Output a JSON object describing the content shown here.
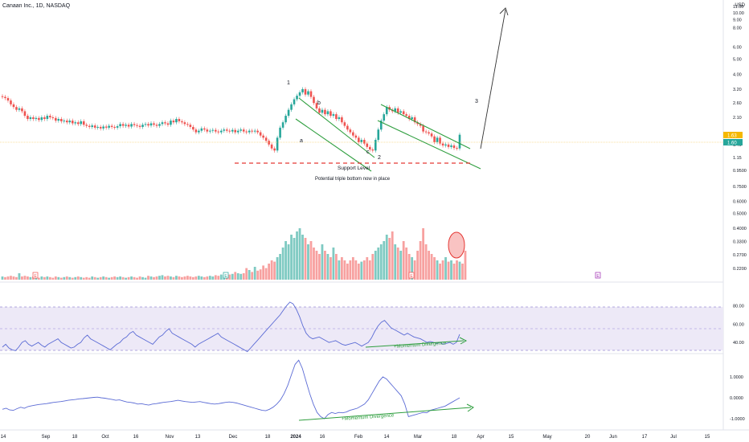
{
  "header": {
    "symbol_line": "Canaan Inc., 1D, NASDAQ",
    "currency": "USD"
  },
  "colors": {
    "up": "#26a69a",
    "down": "#ef5350",
    "vol_up": "#7fcac2",
    "vol_down": "#f7a1a0",
    "channel": "#2e9e3e",
    "support": "#e53935",
    "indicator_line": "#5b6bd5",
    "rsi_band": "#ede9f7",
    "price_badge_up": "#26a69a",
    "price_badge_alt": "#f5b800"
  },
  "chart_data": {
    "type": "candlestick",
    "symbol": "Canaan Inc.",
    "interval": "1D",
    "exchange": "NASDAQ",
    "price_scale": "log",
    "price_axis_ticks": [
      "11.00",
      "10.00",
      "9.00",
      "8.00",
      "6.00",
      "5.00",
      "4.00",
      "3.20",
      "2.60",
      "2.10",
      "1.40",
      "1.15",
      "0.9500",
      "0.7500",
      "0.6000",
      "0.5000",
      "0.4000",
      "0.3300",
      "0.2700",
      "0.2200"
    ],
    "current_price_labels": [
      "1.63",
      "1.60"
    ],
    "x_axis_ticks": [
      "14",
      "Sep",
      "18",
      "Oct",
      "16",
      "Nov",
      "13",
      "Dec",
      "18",
      "2024",
      "16",
      "Feb",
      "14",
      "Mar",
      "18",
      "Apr",
      "15",
      "May",
      "20",
      "Jun",
      "17",
      "Jul",
      "15"
    ],
    "candles_close": [
      2.85,
      2.8,
      2.7,
      2.55,
      2.45,
      2.35,
      2.4,
      2.3,
      2.15,
      2.05,
      2.1,
      2.05,
      2.08,
      2.02,
      2.1,
      2.05,
      2.15,
      2.1,
      2.08,
      2.0,
      2.05,
      1.98,
      2.0,
      1.95,
      2.0,
      1.92,
      1.95,
      1.9,
      1.98,
      1.88,
      1.85,
      1.82,
      1.86,
      1.8,
      1.82,
      1.78,
      1.83,
      1.8,
      1.85,
      1.82,
      1.8,
      1.84,
      1.9,
      1.85,
      1.88,
      1.83,
      1.9,
      1.87,
      1.85,
      1.82,
      1.88,
      1.9,
      1.86,
      1.92,
      1.88,
      1.85,
      1.9,
      1.95,
      1.92,
      1.88,
      2.0,
      1.95,
      2.05,
      1.98,
      1.95,
      1.9,
      1.88,
      1.82,
      1.75,
      1.68,
      1.72,
      1.78,
      1.75,
      1.7,
      1.72,
      1.74,
      1.7,
      1.68,
      1.72,
      1.75,
      1.72,
      1.7,
      1.74,
      1.68,
      1.72,
      1.75,
      1.7,
      1.68,
      1.72,
      1.7,
      1.72,
      1.68,
      1.6,
      1.55,
      1.48,
      1.4,
      1.32,
      1.28,
      1.55,
      1.8,
      1.95,
      2.15,
      2.35,
      2.55,
      2.75,
      2.9,
      3.05,
      3.2,
      2.95,
      3.1,
      2.85,
      2.6,
      2.4,
      2.25,
      2.35,
      2.2,
      2.3,
      2.15,
      2.2,
      2.05,
      2.1,
      1.95,
      1.85,
      1.75,
      1.68,
      1.6,
      1.55,
      1.45,
      1.5,
      1.42,
      1.35,
      1.3,
      1.28,
      1.5,
      1.75,
      2.0,
      2.2,
      2.45,
      2.35,
      2.3,
      2.4,
      2.25,
      2.3,
      2.2,
      2.15,
      2.05,
      2.1,
      1.95,
      1.9,
      1.85,
      1.7,
      1.68,
      1.65,
      1.58,
      1.45,
      1.55,
      1.42,
      1.38,
      1.4,
      1.35,
      1.38,
      1.33,
      1.32,
      1.62
    ],
    "volume_relative": [
      0.05,
      0.04,
      0.05,
      0.06,
      0.05,
      0.04,
      0.1,
      0.05,
      0.06,
      0.05,
      0.04,
      0.05,
      0.04,
      0.03,
      0.05,
      0.04,
      0.05,
      0.04,
      0.03,
      0.05,
      0.04,
      0.03,
      0.04,
      0.05,
      0.04,
      0.03,
      0.04,
      0.05,
      0.04,
      0.03,
      0.04,
      0.03,
      0.05,
      0.04,
      0.03,
      0.04,
      0.05,
      0.04,
      0.03,
      0.04,
      0.05,
      0.04,
      0.05,
      0.04,
      0.03,
      0.04,
      0.05,
      0.04,
      0.03,
      0.05,
      0.04,
      0.03,
      0.06,
      0.05,
      0.04,
      0.05,
      0.06,
      0.07,
      0.05,
      0.06,
      0.05,
      0.04,
      0.06,
      0.05,
      0.04,
      0.05,
      0.06,
      0.05,
      0.04,
      0.05,
      0.06,
      0.05,
      0.04,
      0.05,
      0.06,
      0.05,
      0.07,
      0.06,
      0.08,
      0.07,
      0.1,
      0.08,
      0.09,
      0.12,
      0.1,
      0.09,
      0.1,
      0.18,
      0.15,
      0.12,
      0.2,
      0.14,
      0.16,
      0.22,
      0.18,
      0.25,
      0.3,
      0.28,
      0.35,
      0.4,
      0.5,
      0.6,
      0.55,
      0.7,
      0.65,
      0.75,
      0.8,
      0.7,
      0.65,
      0.55,
      0.6,
      0.5,
      0.45,
      0.4,
      0.55,
      0.45,
      0.4,
      0.35,
      0.5,
      0.4,
      0.3,
      0.35,
      0.3,
      0.25,
      0.3,
      0.35,
      0.3,
      0.25,
      0.28,
      0.3,
      0.35,
      0.3,
      0.4,
      0.45,
      0.5,
      0.55,
      0.6,
      0.7,
      0.65,
      0.75,
      0.55,
      0.5,
      0.45,
      0.6,
      0.5,
      0.4,
      0.35,
      0.3,
      0.45,
      0.6,
      0.8,
      0.55,
      0.45,
      0.4,
      0.35,
      0.3,
      0.25,
      0.3,
      0.35,
      0.28,
      0.3,
      0.25,
      0.3,
      0.28,
      0.25,
      0.45
    ],
    "volume_axis_ticks": [],
    "rsi": {
      "axis_ticks": [
        "80.00",
        "60.00",
        "40.00"
      ],
      "band": [
        30,
        70
      ],
      "values": [
        35,
        38,
        34,
        32,
        31,
        35,
        40,
        42,
        38,
        36,
        38,
        40,
        37,
        35,
        38,
        40,
        42,
        44,
        40,
        38,
        36,
        34,
        35,
        38,
        40,
        45,
        48,
        44,
        42,
        40,
        38,
        36,
        34,
        32,
        35,
        38,
        40,
        44,
        46,
        50,
        52,
        48,
        46,
        44,
        42,
        40,
        38,
        42,
        46,
        48,
        52,
        55,
        50,
        48,
        46,
        44,
        42,
        40,
        38,
        35,
        38,
        40,
        42,
        44,
        46,
        48,
        50,
        46,
        44,
        42,
        40,
        38,
        36,
        34,
        32,
        30,
        34,
        38,
        42,
        46,
        50,
        54,
        58,
        62,
        66,
        70,
        75,
        80,
        84,
        82,
        76,
        68,
        58,
        50,
        46,
        44,
        45,
        46,
        44,
        42,
        40,
        41,
        42,
        40,
        38,
        37,
        38,
        39,
        40,
        38,
        36,
        38,
        40,
        45,
        52,
        58,
        62,
        64,
        60,
        56,
        54,
        52,
        50,
        48,
        50,
        48,
        46,
        45,
        44,
        42,
        40,
        41,
        40,
        39,
        40,
        38,
        39,
        40,
        38,
        40,
        49
      ]
    },
    "osc": {
      "axis_ticks": [
        "1.0000",
        "0.0000",
        "-1.0000"
      ],
      "values": [
        -0.55,
        -0.5,
        -0.58,
        -0.6,
        -0.52,
        -0.45,
        -0.5,
        -0.42,
        -0.38,
        -0.35,
        -0.32,
        -0.3,
        -0.28,
        -0.25,
        -0.22,
        -0.2,
        -0.18,
        -0.15,
        -0.12,
        -0.1,
        -0.08,
        -0.05,
        -0.04,
        -0.02,
        0.0,
        0.02,
        0.03,
        0.0,
        -0.02,
        -0.05,
        -0.08,
        -0.12,
        -0.1,
        -0.15,
        -0.2,
        -0.22,
        -0.25,
        -0.3,
        -0.28,
        -0.32,
        -0.35,
        -0.3,
        -0.28,
        -0.25,
        -0.22,
        -0.2,
        -0.18,
        -0.15,
        -0.12,
        -0.15,
        -0.18,
        -0.2,
        -0.22,
        -0.2,
        -0.18,
        -0.22,
        -0.25,
        -0.28,
        -0.3,
        -0.28,
        -0.25,
        -0.22,
        -0.2,
        -0.22,
        -0.25,
        -0.3,
        -0.35,
        -0.4,
        -0.45,
        -0.5,
        -0.55,
        -0.6,
        -0.62,
        -0.55,
        -0.45,
        -0.3,
        -0.1,
        0.2,
        0.6,
        1.1,
        1.6,
        1.8,
        1.4,
        0.8,
        0.2,
        -0.3,
        -0.7,
        -0.9,
        -1.0,
        -0.8,
        -0.7,
        -0.75,
        -0.7,
        -0.72,
        -0.68,
        -0.6,
        -0.55,
        -0.5,
        -0.4,
        -0.3,
        -0.1,
        0.2,
        0.5,
        0.8,
        1.0,
        0.9,
        0.7,
        0.5,
        0.3,
        0.1,
        -0.3,
        -0.9,
        -0.85,
        -0.8,
        -0.75,
        -0.7,
        -0.72,
        -0.6,
        -0.55,
        -0.5,
        -0.45,
        -0.4,
        -0.3,
        -0.2,
        -0.1,
        0.0
      ]
    },
    "markers": {
      "dividends": [
        {
          "label": "E"
        },
        {
          "label": "E"
        },
        {
          "label": "E"
        },
        {
          "label": "E"
        }
      ]
    },
    "annotations": {
      "wave_1": "1",
      "wave_2": "2",
      "wave_3": "3",
      "wave_a": "a",
      "wave_b": "b",
      "wave_c": "c",
      "support": "Support Level",
      "triple_bottom": "Potential triple bottom now in place",
      "rsi_divergence": "+Momentum Divergence",
      "osc_divergence": "+Momentum Divergence"
    },
    "grid": false,
    "legend": "none"
  }
}
